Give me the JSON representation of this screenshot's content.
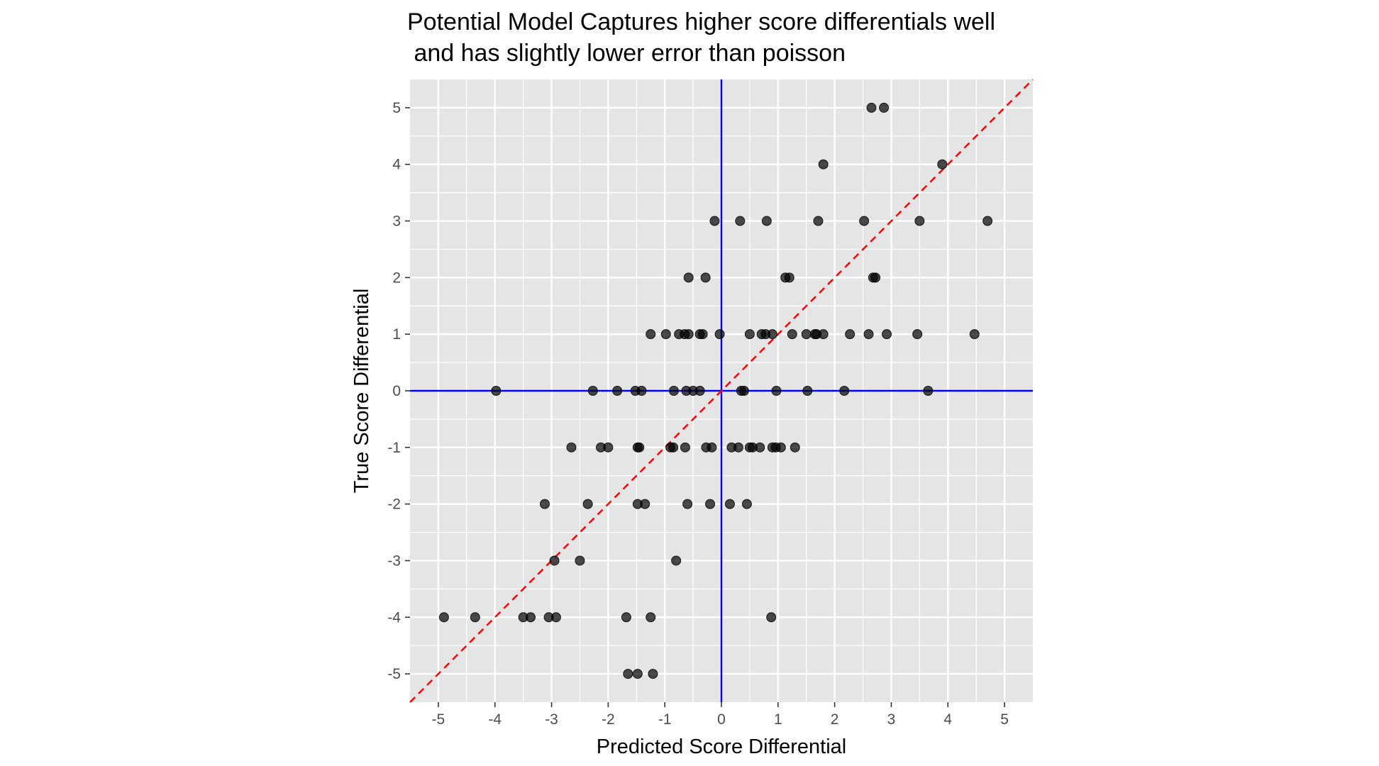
{
  "colors": {
    "panel_background": "#e5e5e5",
    "grid_line": "#ffffff",
    "reference_axis": "#0000ff",
    "identity_line": "#ff0000",
    "point_fill": "#000000",
    "tick_label": "#4d4d4d",
    "text": "#000000"
  },
  "chart_data": {
    "type": "scatter",
    "title_lines": [
      "Potential Model Captures higher score differentials well",
      " and has slightly lower error than poisson"
    ],
    "xlabel": "Predicted Score Differential",
    "ylabel": "True Score Differential",
    "xlim": [
      -5.5,
      5.5
    ],
    "ylim": [
      -5.5,
      5.5
    ],
    "x_ticks": [
      -5,
      -4,
      -3,
      -2,
      -1,
      0,
      1,
      2,
      3,
      4,
      5
    ],
    "y_ticks": [
      -5,
      -4,
      -3,
      -2,
      -1,
      0,
      1,
      2,
      3,
      4,
      5
    ],
    "x_tick_labels": [
      "-5",
      "-4",
      "-3",
      "-2",
      "-1",
      "0",
      "1",
      "2",
      "3",
      "4",
      "5"
    ],
    "y_tick_labels": [
      "-5",
      "-4",
      "-3",
      "-2",
      "-1",
      "0",
      "1",
      "2",
      "3",
      "4",
      "5"
    ],
    "grid": true,
    "reference_lines": {
      "vertical_x": 0,
      "horizontal_y": 0,
      "identity_dashed": true
    },
    "points": [
      {
        "x": 2.65,
        "y": 5
      },
      {
        "x": 2.87,
        "y": 5
      },
      {
        "x": 1.8,
        "y": 4
      },
      {
        "x": 3.9,
        "y": 4
      },
      {
        "x": -0.12,
        "y": 3
      },
      {
        "x": 0.33,
        "y": 3
      },
      {
        "x": 0.8,
        "y": 3
      },
      {
        "x": 1.71,
        "y": 3
      },
      {
        "x": 2.52,
        "y": 3
      },
      {
        "x": 3.5,
        "y": 3
      },
      {
        "x": 4.7,
        "y": 3
      },
      {
        "x": -0.58,
        "y": 2
      },
      {
        "x": -0.28,
        "y": 2
      },
      {
        "x": 1.13,
        "y": 2
      },
      {
        "x": 1.2,
        "y": 2
      },
      {
        "x": 2.68,
        "y": 2
      },
      {
        "x": 2.72,
        "y": 2
      },
      {
        "x": -1.25,
        "y": 1
      },
      {
        "x": -0.98,
        "y": 1
      },
      {
        "x": -0.75,
        "y": 1
      },
      {
        "x": -0.65,
        "y": 1
      },
      {
        "x": -0.58,
        "y": 1
      },
      {
        "x": -0.38,
        "y": 1
      },
      {
        "x": -0.33,
        "y": 1
      },
      {
        "x": -0.03,
        "y": 1
      },
      {
        "x": 0.5,
        "y": 1
      },
      {
        "x": 0.71,
        "y": 1
      },
      {
        "x": 0.78,
        "y": 1
      },
      {
        "x": 0.9,
        "y": 1
      },
      {
        "x": 1.25,
        "y": 1
      },
      {
        "x": 1.5,
        "y": 1
      },
      {
        "x": 1.65,
        "y": 1
      },
      {
        "x": 1.68,
        "y": 1
      },
      {
        "x": 1.8,
        "y": 1
      },
      {
        "x": 2.27,
        "y": 1
      },
      {
        "x": 2.6,
        "y": 1
      },
      {
        "x": 2.92,
        "y": 1
      },
      {
        "x": 3.46,
        "y": 1
      },
      {
        "x": 4.47,
        "y": 1
      },
      {
        "x": -3.98,
        "y": 0
      },
      {
        "x": -2.27,
        "y": 0
      },
      {
        "x": -1.84,
        "y": 0
      },
      {
        "x": -1.52,
        "y": 0
      },
      {
        "x": -1.41,
        "y": 0
      },
      {
        "x": -0.84,
        "y": 0
      },
      {
        "x": -0.62,
        "y": 0
      },
      {
        "x": -0.5,
        "y": 0
      },
      {
        "x": -0.38,
        "y": 0
      },
      {
        "x": 0.35,
        "y": 0
      },
      {
        "x": 0.4,
        "y": 0
      },
      {
        "x": 0.97,
        "y": 0
      },
      {
        "x": 1.52,
        "y": 0
      },
      {
        "x": 2.17,
        "y": 0
      },
      {
        "x": 3.65,
        "y": 0
      },
      {
        "x": -2.65,
        "y": -1
      },
      {
        "x": -2.13,
        "y": -1
      },
      {
        "x": -2.0,
        "y": -1
      },
      {
        "x": -1.48,
        "y": -1
      },
      {
        "x": -1.45,
        "y": -1
      },
      {
        "x": -0.9,
        "y": -1
      },
      {
        "x": -0.85,
        "y": -1
      },
      {
        "x": -0.64,
        "y": -1
      },
      {
        "x": -0.27,
        "y": -1
      },
      {
        "x": -0.17,
        "y": -1
      },
      {
        "x": 0.18,
        "y": -1
      },
      {
        "x": 0.3,
        "y": -1
      },
      {
        "x": 0.5,
        "y": -1
      },
      {
        "x": 0.55,
        "y": -1
      },
      {
        "x": 0.68,
        "y": -1
      },
      {
        "x": 0.9,
        "y": -1
      },
      {
        "x": 0.96,
        "y": -1
      },
      {
        "x": 1.05,
        "y": -1
      },
      {
        "x": 1.3,
        "y": -1
      },
      {
        "x": -3.12,
        "y": -2
      },
      {
        "x": -2.36,
        "y": -2
      },
      {
        "x": -1.48,
        "y": -2
      },
      {
        "x": -1.35,
        "y": -2
      },
      {
        "x": -0.6,
        "y": -2
      },
      {
        "x": -0.2,
        "y": -2
      },
      {
        "x": 0.15,
        "y": -2
      },
      {
        "x": 0.45,
        "y": -2
      },
      {
        "x": -2.95,
        "y": -3
      },
      {
        "x": -2.5,
        "y": -3
      },
      {
        "x": -0.8,
        "y": -3
      },
      {
        "x": -4.9,
        "y": -4
      },
      {
        "x": -4.35,
        "y": -4
      },
      {
        "x": -3.5,
        "y": -4
      },
      {
        "x": -3.37,
        "y": -4
      },
      {
        "x": -3.05,
        "y": -4
      },
      {
        "x": -2.92,
        "y": -4
      },
      {
        "x": -1.68,
        "y": -4
      },
      {
        "x": -1.25,
        "y": -4
      },
      {
        "x": 0.88,
        "y": -4
      },
      {
        "x": -1.65,
        "y": -5
      },
      {
        "x": -1.48,
        "y": -5
      },
      {
        "x": -1.21,
        "y": -5
      }
    ]
  }
}
